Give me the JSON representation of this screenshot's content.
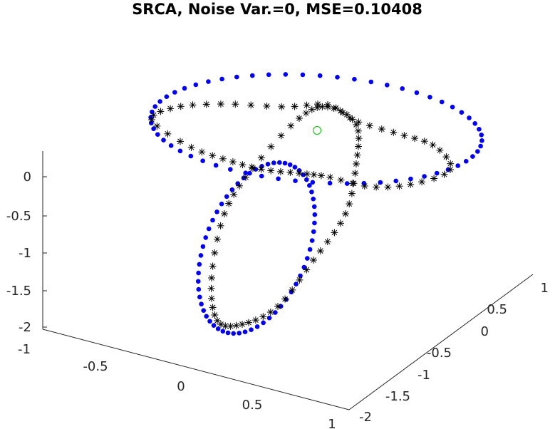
{
  "chart_data": {
    "type": "scatter",
    "dimensions": 3,
    "title": "SRCA, Noise Var.=0, MSE=0.10408",
    "xlabel": "",
    "ylabel": "",
    "zlabel": "",
    "xlim": [
      -1,
      1
    ],
    "ylim": [
      -2,
      1
    ],
    "zlim": [
      -2,
      0.3
    ],
    "x_ticks": [
      "-1",
      "-0.5",
      "0",
      "0.5",
      "1"
    ],
    "y_ticks": [
      "-2",
      "-1.5",
      "-1",
      "-0.5",
      "0",
      "0.5",
      "1"
    ],
    "z_ticks": [
      "-2",
      "-1.5",
      "-1",
      "-0.5",
      "0"
    ],
    "grid": false,
    "series": [
      {
        "marker": "filled-dot",
        "color": "#0000ff",
        "description": "two interlocked ellipses (reference)",
        "count": 120
      },
      {
        "marker": "asterisk",
        "color": "#000000",
        "description": "two interlocked loops (estimate)",
        "count": 120
      },
      {
        "marker": "open-circle",
        "color": "#00c000",
        "description": "single point",
        "count": 1
      }
    ]
  }
}
